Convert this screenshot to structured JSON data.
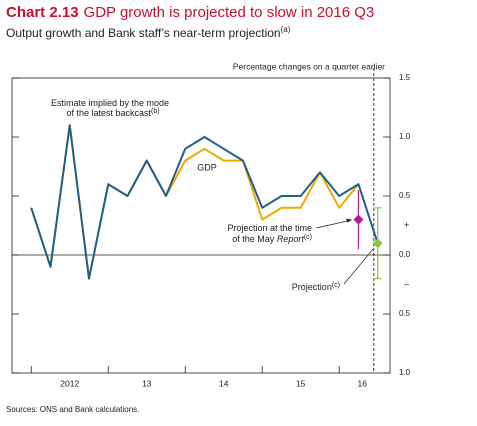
{
  "title_lead": "Chart 2.13",
  "title": "GDP growth is projected to slow in 2016 Q3",
  "subtitle": "Output growth and Bank staff’s near-term projection",
  "subtitle_note": "(a)",
  "source": "Sources: ONS and Bank calculations.",
  "chart_data": {
    "type": "line",
    "y_axis_label": "Percentage changes on a quarter earlier",
    "x": [
      2012,
      2012.25,
      2012.5,
      2012.75,
      2013,
      2013.25,
      2013.5,
      2013.75,
      2014,
      2014.25,
      2014.5,
      2014.75,
      2015,
      2015.25,
      2015.5,
      2015.75,
      2016,
      2016.25,
      2016.5
    ],
    "series": [
      {
        "name": "GDP",
        "color": "#f2a900",
        "values": [
          0.4,
          -0.1,
          1.1,
          -0.2,
          0.6,
          0.5,
          0.8,
          0.5,
          0.8,
          0.9,
          0.8,
          0.8,
          0.3,
          0.4,
          0.4,
          0.7,
          0.4,
          0.6,
          null
        ]
      },
      {
        "label_lines": [
          "Estimate implied by the mode",
          "of the latest backcast"
        ],
        "note": "(b)",
        "color": "#1f5f8b",
        "values": [
          0.4,
          -0.1,
          1.1,
          -0.2,
          0.6,
          0.5,
          0.8,
          0.5,
          0.9,
          1.0,
          0.9,
          0.8,
          0.4,
          0.5,
          0.5,
          0.7,
          0.5,
          0.6,
          0.1
        ]
      }
    ],
    "points": [
      {
        "x": 2016.25,
        "value": 0.3,
        "error": 0.25,
        "color": "#b5198e",
        "label_lines": [
          "Projection at the time",
          "of the May "
        ],
        "label_italic": "Report",
        "note": "(c)"
      },
      {
        "x": 2016.5,
        "value": 0.1,
        "error": 0.3,
        "color": "#8dc63f",
        "label": "Projection",
        "note": "(c)"
      }
    ],
    "projection_line_x": 2016.45,
    "xlim": [
      2011.75,
      2016.66
    ],
    "xticks": [
      2012,
      2013,
      2014,
      2015,
      2016
    ],
    "xlabels": [
      {
        "value": 2012.5,
        "label": "2012"
      },
      {
        "value": 2013.5,
        "label": "13"
      },
      {
        "value": 2014.5,
        "label": "14"
      },
      {
        "value": 2015.5,
        "label": "15"
      },
      {
        "value": 2016.3,
        "label": "16"
      }
    ],
    "ylim": [
      -1.0,
      1.5
    ],
    "yticks": [
      1.5,
      {
        "value": 1.0,
        "label": "1.0"
      },
      0.5,
      {
        "value": 0.0,
        "label": "0.0"
      },
      {
        "value": -0.5,
        "label": "0.5"
      },
      {
        "value": -1.0,
        "label": "1.0"
      }
    ],
    "sign_labels": [
      {
        "value": 0.25,
        "label": "+"
      },
      {
        "value": -0.25,
        "label": "–"
      }
    ]
  }
}
